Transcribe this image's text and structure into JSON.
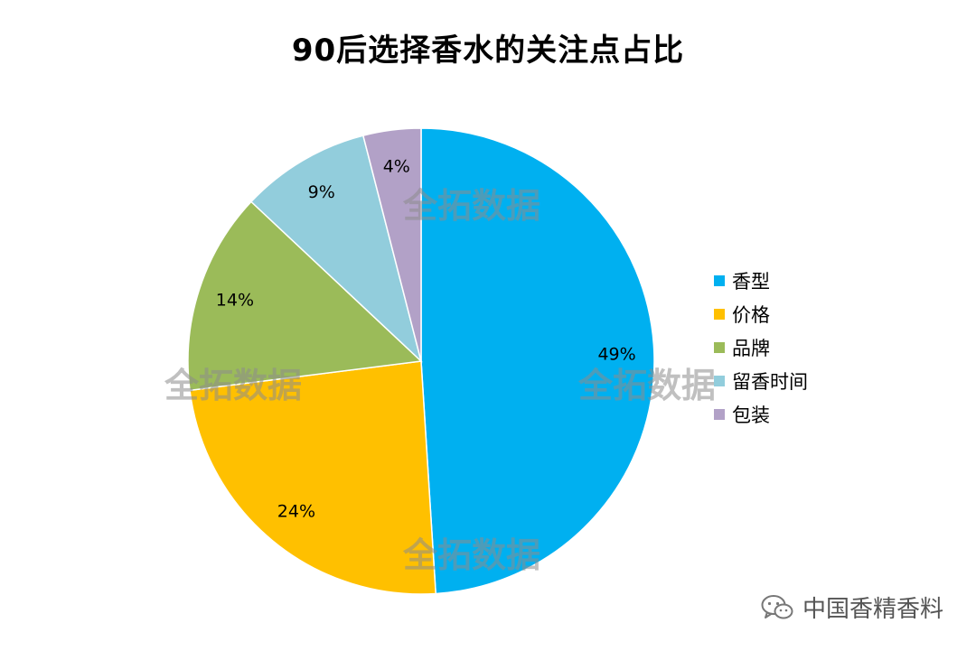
{
  "chart_data": {
    "type": "pie",
    "title": "90后选择香水的关注点占比",
    "slices": [
      {
        "label": "香型",
        "value": 49,
        "display": "49%",
        "color": "#00B0F0"
      },
      {
        "label": "价格",
        "value": 24,
        "display": "24%",
        "color": "#FFC000"
      },
      {
        "label": "品牌",
        "value": 14,
        "display": "14%",
        "color": "#9BBB59"
      },
      {
        "label": "留香时间",
        "value": 9,
        "display": "9%",
        "color": "#92CDDC"
      },
      {
        "label": "包装",
        "value": 4,
        "display": "4%",
        "color": "#B2A1C7"
      }
    ],
    "start_angle_deg": 0,
    "direction": "clockwise",
    "legend_position": "right"
  },
  "watermark": {
    "text": "全拓数据"
  },
  "footer": {
    "label": "中国香精香料",
    "icon": "wechat-icon"
  }
}
